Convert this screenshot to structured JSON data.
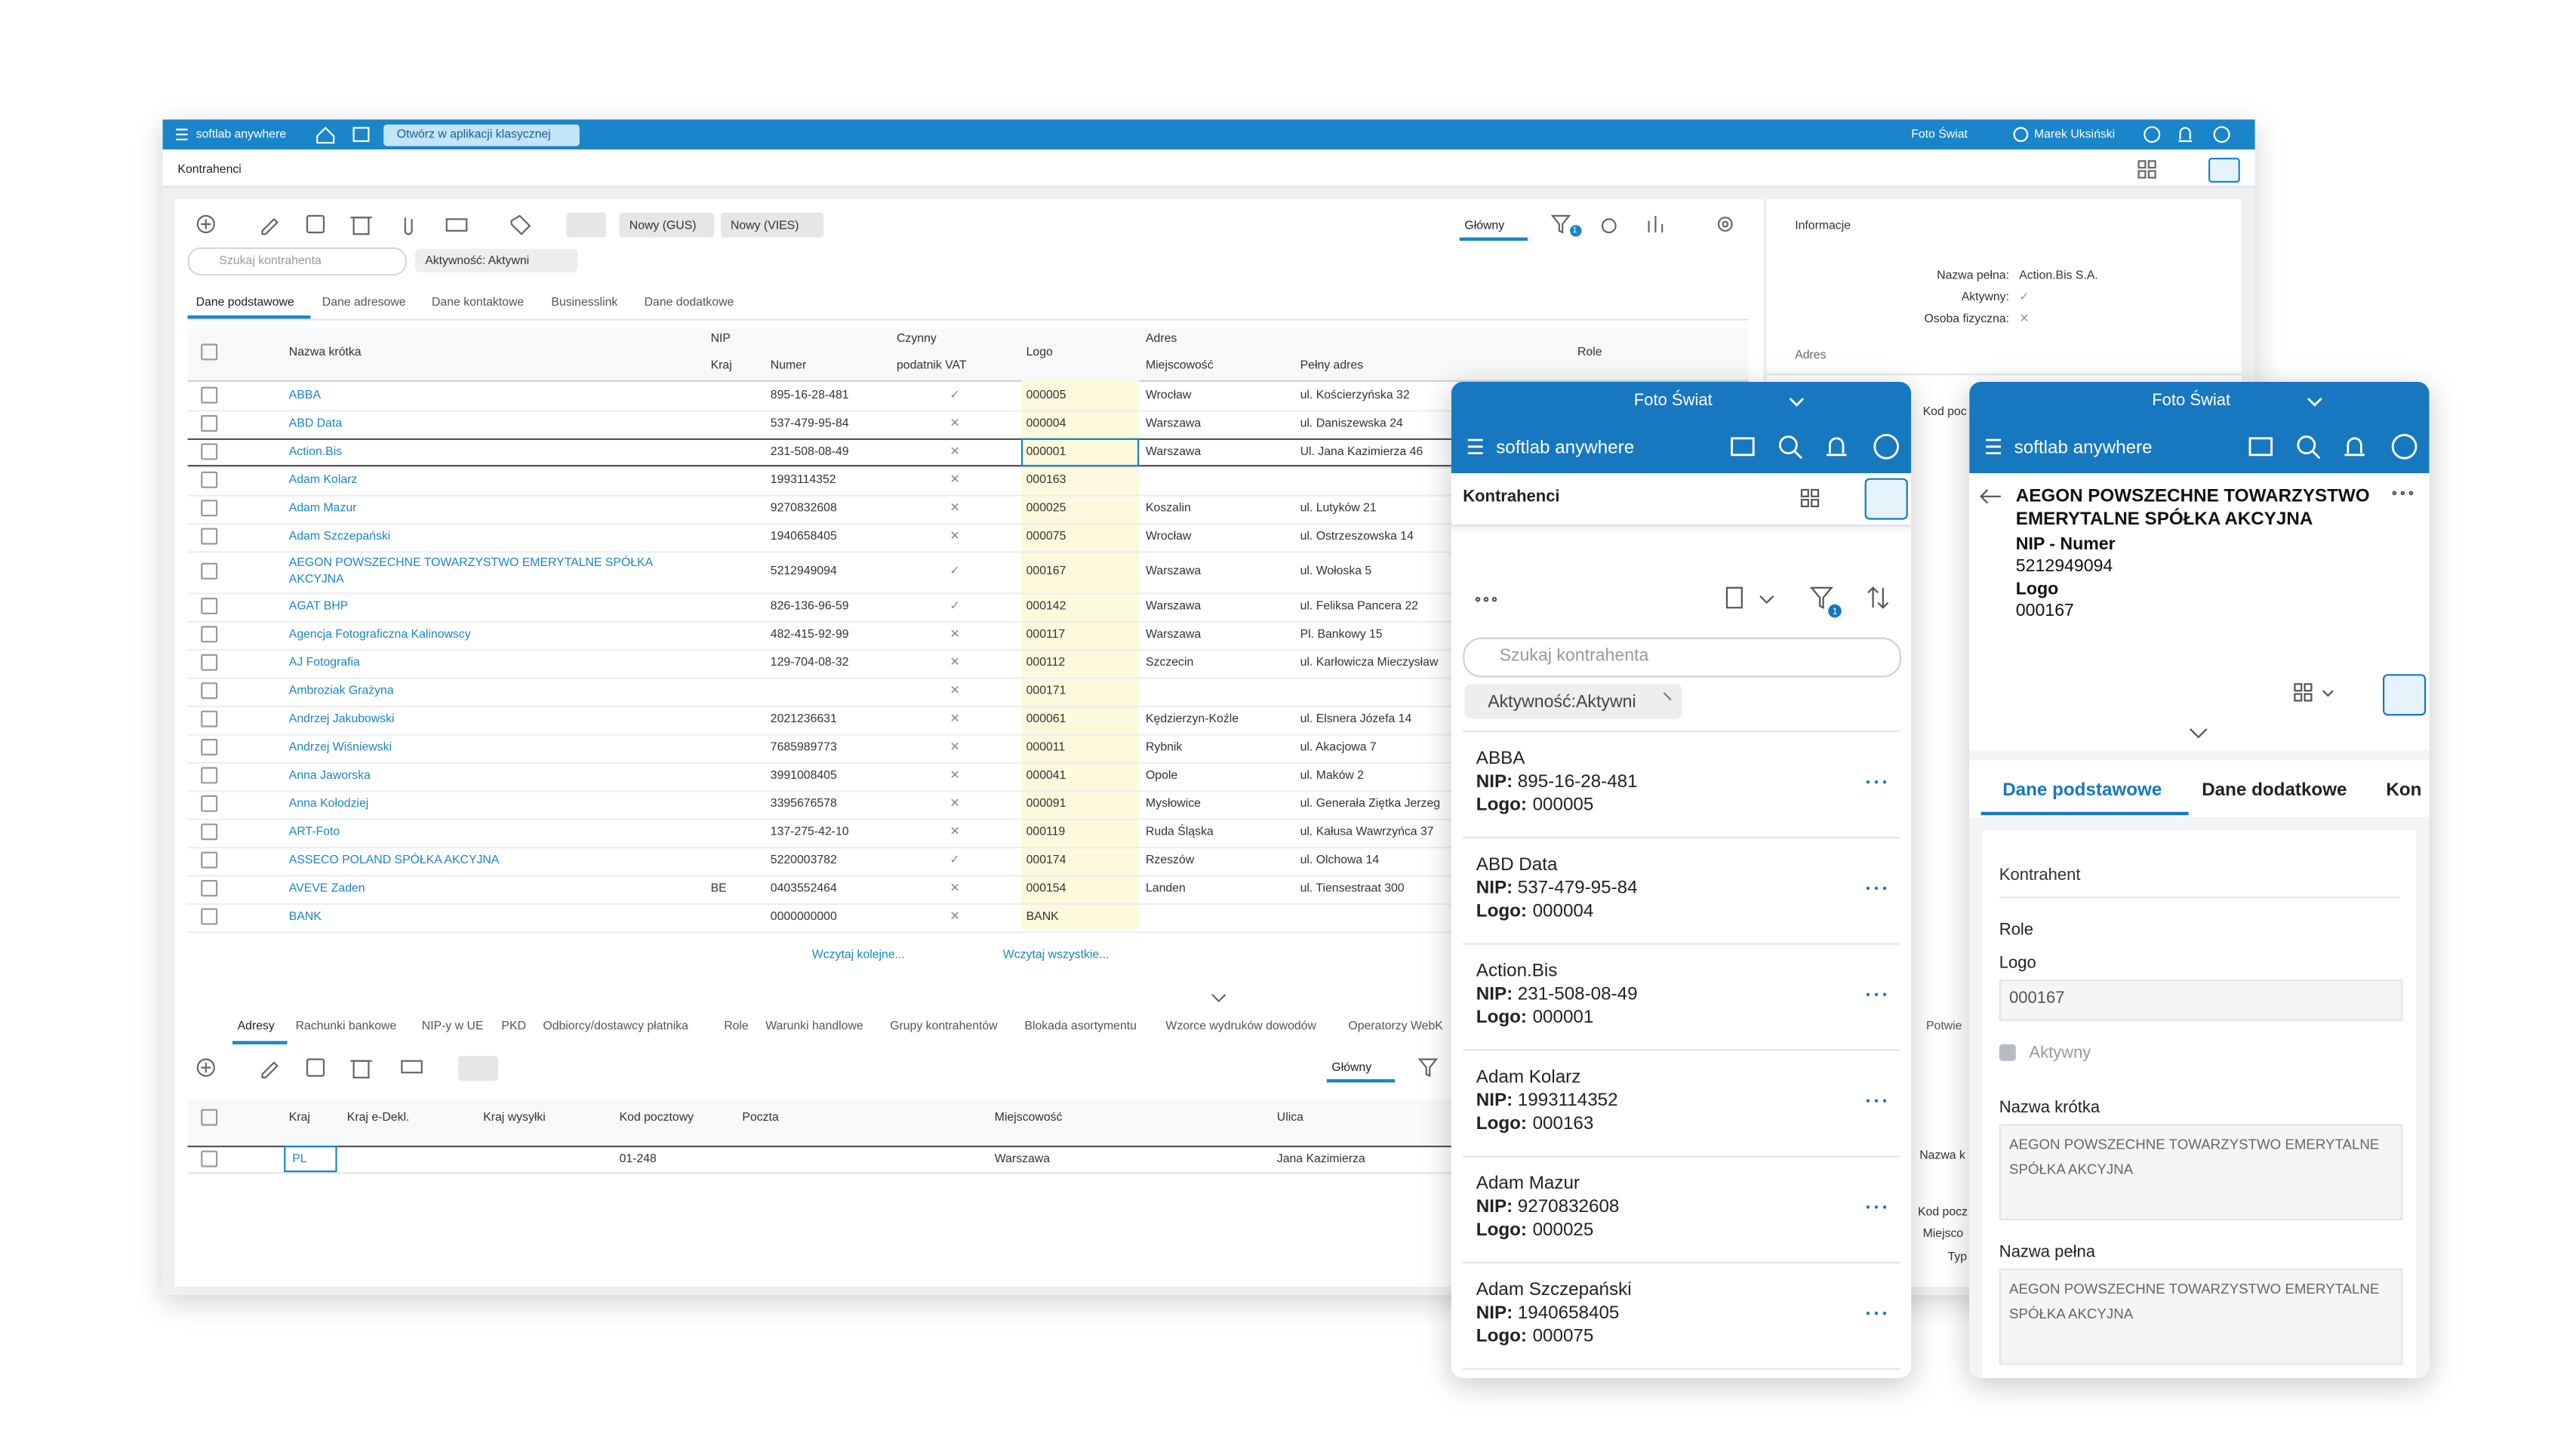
{
  "desktop": {
    "topbar": {
      "app": "softlab anywhere",
      "open_classic": "Otwórz w aplikacji klasycznej",
      "company": "Foto Świat",
      "user": "Marek Uksiński"
    },
    "page_title": "Kontrahenci",
    "toolbar": {
      "buttons": [
        "Nowy (GUS)",
        "Nowy (VIES)"
      ],
      "view": "Główny",
      "filter_badge": 1
    },
    "search_placeholder": "Szukaj kontrahenta",
    "filter_chip": "Aktywność: Aktywni",
    "tabs": [
      "Dane podstawowe",
      "Dane adresowe",
      "Dane kontaktowe",
      "Businesslink",
      "Dane dodatkowe"
    ],
    "table": {
      "headers": {
        "nazwa": "Nazwa krótka",
        "nip": "NIP",
        "kraj": "Kraj",
        "numer": "Numer",
        "vat1": "Czynny",
        "vat2": "podatnik VAT",
        "logo": "Logo",
        "adres": "Adres",
        "miejscowosc": "Miejscowość",
        "pelny": "Pełny adres",
        "role": "Role"
      },
      "rows": [
        [
          "ABBA",
          null,
          "895-16-28-481",
          "✓",
          "000005",
          "Wrocław",
          "ul. Kościerzyńska 32"
        ],
        [
          "ABD Data",
          null,
          "537-479-95-84",
          "✕",
          "000004",
          "Warszawa",
          "ul. Daniszewska 24"
        ],
        [
          "Action.Bis",
          null,
          "231-508-08-49",
          "✕",
          "000001",
          "Warszawa",
          "Ul. Jana Kazimierza 46"
        ],
        [
          "Adam Kolarz",
          null,
          "1993114352",
          "✕",
          "000163",
          null,
          null
        ],
        [
          "Adam Mazur",
          null,
          "9270832608",
          "✕",
          "000025",
          "Koszalin",
          "ul. Lutyków 21"
        ],
        [
          "Adam Szczepański",
          null,
          "1940658405",
          "✕",
          "000075",
          "Wrocław",
          "ul. Ostrzeszowska 14"
        ],
        [
          "AEGON POWSZECHNE TOWARZYSTWO EMERYTALNE SPÓŁKA AKCYJNA",
          null,
          "5212949094",
          "✓",
          "000167",
          "Warszawa",
          "ul. Wołoska 5"
        ],
        [
          "AGAT BHP",
          null,
          "826-136-96-59",
          "✓",
          "000142",
          "Warszawa",
          "ul. Feliksa Pancera 22"
        ],
        [
          "Agencja Fotograficzna Kalinowscy",
          null,
          "482-415-92-99",
          "✕",
          "000117",
          "Warszawa",
          "Pl. Bankowy 15"
        ],
        [
          "AJ Fotografia",
          null,
          "129-704-08-32",
          "✕",
          "000112",
          "Szczecin",
          "ul. Karłowicza Mieczysław"
        ],
        [
          "Ambroziak Grażyna",
          null,
          null,
          "✕",
          "000171",
          null,
          null
        ],
        [
          "Andrzej Jakubowski",
          null,
          "2021236631",
          "✕",
          "000061",
          "Kędzierzyn-Koźle",
          "ul. Elsnera Józefa 14"
        ],
        [
          "Andrzej Wiśniewski",
          null,
          "7685989773",
          "✕",
          "000011",
          "Rybnik",
          "ul. Akacjowa 7"
        ],
        [
          "Anna Jaworska",
          null,
          "3991008405",
          "✕",
          "000041",
          "Opole",
          "ul. Maków 2"
        ],
        [
          "Anna Kołodziej",
          null,
          "3395676578",
          "✕",
          "000091",
          "Mysłowice",
          "ul. Generała Ziętka Jerzeg"
        ],
        [
          "ART-Foto",
          null,
          "137-275-42-10",
          "✕",
          "000119",
          "Ruda Śląska",
          "ul. Kałusa Wawrzyńca 37"
        ],
        [
          "ASSECO POLAND SPÓŁKA AKCYJNA",
          null,
          "5220003782",
          "✓",
          "000174",
          "Rzeszów",
          "ul. Olchowa 14"
        ],
        [
          "AVEVE Zaden",
          "BE",
          "0403552464",
          "✕",
          "000154",
          "Landen",
          "ul. Tiensestraat 300"
        ],
        [
          "BANK",
          null,
          "0000000000",
          "✕",
          "BANK",
          null,
          null
        ]
      ]
    },
    "load_more": "Wczytaj kolejne...",
    "load_all": "Wczytaj wszystkie...",
    "bottom": {
      "tabs": [
        "Adresy",
        "Rachunki bankowe",
        "NIP-y w UE",
        "PKD",
        "Odbiorcy/dostawcy płatnika",
        "Role",
        "Warunki handlowe",
        "Grupy kontrahentów",
        "Blokada asortymentu",
        "Wzorce wydruków dowodów",
        "Operatorzy WebK",
        "Potwie"
      ],
      "view": "Główny",
      "headers": [
        "Kraj",
        "Kraj e-Dekl.",
        "Kraj wysyłki",
        "Kod pocztowy",
        "Poczta",
        "Miejscowość",
        "Ulica"
      ],
      "rows": [
        [
          "PL",
          null,
          null,
          "01-248",
          null,
          "Warszawa",
          "Jana Kazimierza"
        ]
      ]
    },
    "info": {
      "title": "Informacje",
      "fields": [
        [
          "Nazwa pełna:",
          "Action.Bis S.A."
        ],
        [
          "Aktywny:",
          "✓"
        ],
        [
          "Osoba fizyczna:",
          "✕"
        ]
      ],
      "section": "Adres",
      "clipped": [
        "Kod poc",
        "Nazwa k",
        "Kod pocz",
        "Miejsco",
        "Typ"
      ]
    }
  },
  "mobile_list": {
    "company": "Foto Świat",
    "app": "softlab anywhere",
    "title": "Kontrahenci",
    "filter_badge": 1,
    "search_placeholder": "Szukaj kontrahenta",
    "filter_chip": "Aktywność:Aktywni",
    "nip_label": "NIP:",
    "logo_label": "Logo:",
    "items": [
      [
        "ABBA",
        "895-16-28-481",
        "000005"
      ],
      [
        "ABD Data",
        "537-479-95-84",
        "000004"
      ],
      [
        "Action.Bis",
        "231-508-08-49",
        "000001"
      ],
      [
        "Adam Kolarz",
        "1993114352",
        "000163"
      ],
      [
        "Adam Mazur",
        "9270832608",
        "000025"
      ],
      [
        "Adam Szczepański",
        "1940658405",
        "000075"
      ]
    ]
  },
  "mobile_detail": {
    "company": "Foto Świat",
    "app": "softlab anywhere",
    "name": "AEGON POWSZECHNE TOWARZYSTWO EMERYTALNE SPÓŁKA AKCYJNA",
    "nip_label": "NIP - Numer",
    "nip": "5212949094",
    "logo_label": "Logo",
    "logo": "000167",
    "tabs": [
      "Dane podstawowe",
      "Dane dodatkowe",
      "Kon"
    ],
    "section": "Kontrahent",
    "role_label": "Role",
    "logo_field_label": "Logo",
    "logo_field": "000167",
    "active_label": "Aktywny",
    "short_name_label": "Nazwa krótka",
    "short_name": "AEGON POWSZECHNE TOWARZYSTWO EMERYTALNE SPÓŁKA AKCYJNA",
    "full_name_label": "Nazwa pełna",
    "full_name": "AEGON POWSZECHNE TOWARZYSTWO EMERYTALNE SPÓŁKA AKCYJNA"
  }
}
